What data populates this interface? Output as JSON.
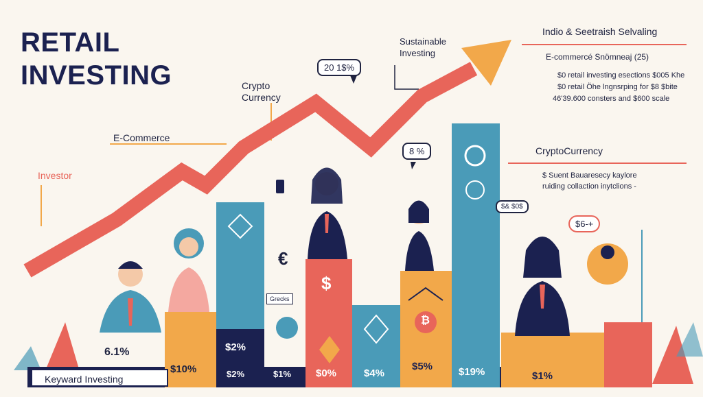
{
  "title": "RETAIL INVESTING",
  "labels": {
    "investor": "Investor",
    "ecommerce": "E-Commerce",
    "crypto": "Crypto Currency",
    "sustainable": "Sustainable Investing",
    "top_right_heading": "Indio & Seetraish Selvaling",
    "ecommerce_note": "E-commercé Snömneaj (25)",
    "crypto_label": "CryptoCurrency",
    "crypto_note_1": "$ Suent Bauaresecy kaylore",
    "crypto_note_2": "ruiding collaction inytclions -",
    "stat_lines": [
      "$0 retail investing esections $005 Khe",
      "$0 retail Öhe lngnsrping for $8 $bite",
      "46'39.600 consters and $600 scale"
    ],
    "keyword": "Keyward Investing",
    "grecks": "Grecks"
  },
  "callouts": {
    "top": "20 1$%",
    "mid": "8 %",
    "small": "$& $0$",
    "pin": "$6-+"
  },
  "bars": [
    {
      "value": "$10%",
      "color": "#f2a84a"
    },
    {
      "value": "$2%",
      "color": "#1b2150"
    },
    {
      "value": "$2%",
      "color": "#4a9bb8"
    },
    {
      "value": "$1%",
      "color": "#faf6ef"
    },
    {
      "value": "$0%",
      "color": "#e8655a"
    },
    {
      "value": "$4%",
      "color": "#4a9bb8"
    },
    {
      "value": "$5%",
      "color": "#f2a84a"
    },
    {
      "value": "$19%",
      "color": "#4a9bb8"
    },
    {
      "value": "$1%",
      "color": "#f2a84a"
    }
  ],
  "side_stat": "6.1%",
  "symbols": {
    "dollar": "$",
    "euro": "€",
    "bitcoin": "₿"
  },
  "colors": {
    "navy": "#1b2150",
    "teal": "#4a9bb8",
    "orange": "#f2a84a",
    "coral": "#e8655a",
    "cream": "#faf6ef"
  }
}
